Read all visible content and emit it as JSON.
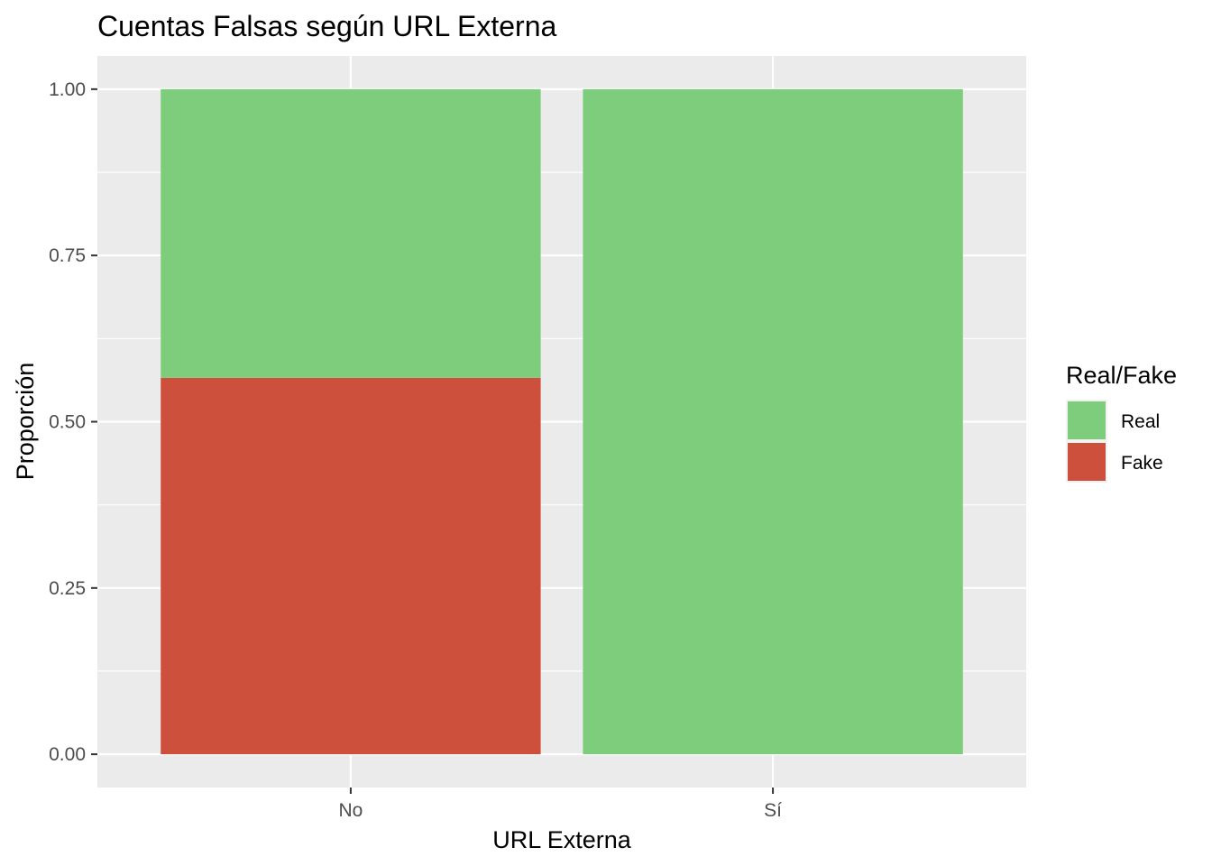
{
  "chart_data": {
    "type": "bar",
    "stacked": true,
    "title": "Cuentas Falsas según URL Externa",
    "xlabel": "URL Externa",
    "ylabel": "Proporción",
    "categories": [
      "No",
      "Sí"
    ],
    "series": [
      {
        "name": "Fake",
        "values": [
          0.566,
          0.0
        ],
        "color": "#CD503C"
      },
      {
        "name": "Real",
        "values": [
          0.434,
          1.0
        ],
        "color": "#7DCD7D"
      }
    ],
    "ylim": [
      -0.05,
      1.05
    ],
    "yticks": [
      0.0,
      0.25,
      0.5,
      0.75,
      1.0
    ],
    "ytick_labels": [
      "0.00",
      "0.25",
      "0.50",
      "0.75",
      "1.00"
    ],
    "grid": true,
    "panel_background": "#EBEBEB",
    "legend": {
      "title": "Real/Fake",
      "placement": "right",
      "entries": [
        {
          "label": "Real",
          "color": "#7DCD7D"
        },
        {
          "label": "Fake",
          "color": "#CD503C"
        }
      ]
    }
  }
}
